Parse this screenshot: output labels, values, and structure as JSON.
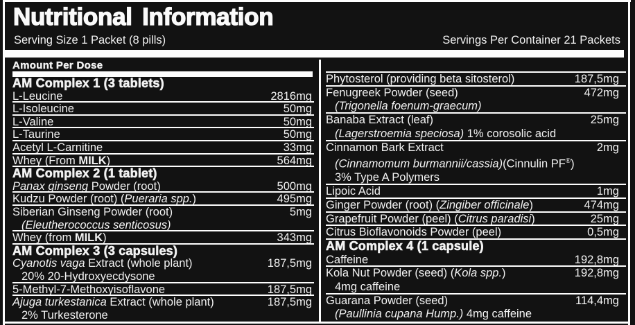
{
  "title": "Nutritional Information",
  "serving_line": {
    "serving_size": "Serving Size 1 Packet (8 pills)",
    "servings_per_container": "Servings Per Container 21 Packets"
  },
  "amount_per_dose_label": "Amount Per Dose",
  "colors": {
    "background": "#121212",
    "text": "#f2f2f2",
    "rules": "#fdfdfd"
  },
  "columns": {
    "left": [
      {
        "type": "header",
        "sep": false,
        "text": "AM Complex 1 (3 tablets)"
      },
      {
        "type": "item",
        "sep": false,
        "parts": [
          {
            "t": "L-Leucine"
          }
        ],
        "amount": "2816mg"
      },
      {
        "type": "item",
        "sep": true,
        "parts": [
          {
            "t": "L-Isoleucine"
          }
        ],
        "amount": "50mg"
      },
      {
        "type": "item",
        "sep": true,
        "parts": [
          {
            "t": "L-Valine"
          }
        ],
        "amount": "50mg"
      },
      {
        "type": "item",
        "sep": true,
        "parts": [
          {
            "t": "L-Taurine"
          }
        ],
        "amount": "50mg"
      },
      {
        "type": "item",
        "sep": true,
        "parts": [
          {
            "t": "Acetyl L-Carnitine"
          }
        ],
        "amount": "33mg"
      },
      {
        "type": "item",
        "sep": true,
        "parts": [
          {
            "t": "Whey (From "
          },
          {
            "t": "MILK",
            "b": true
          },
          {
            "t": ")"
          }
        ],
        "amount": "564mg"
      },
      {
        "type": "header",
        "sep": true,
        "text": "AM Complex 2 (1 tablet)"
      },
      {
        "type": "item",
        "sep": false,
        "parts": [
          {
            "t": "Panax ginseng",
            "i": true
          },
          {
            "t": " Powder (root)"
          }
        ],
        "amount": "500mg"
      },
      {
        "type": "item",
        "sep": true,
        "parts": [
          {
            "t": "Kudzu Powder (root) ("
          },
          {
            "t": "Pueraria spp.",
            "i": true
          },
          {
            "t": ")"
          }
        ],
        "amount": "495mg"
      },
      {
        "type": "item",
        "sep": true,
        "parts": [
          {
            "t": "Siberian Ginseng Powder (root)"
          }
        ],
        "amount": "5mg",
        "subs": [
          [
            {
              "t": "(Eleutherococcus senticosus)",
              "i": true
            }
          ]
        ]
      },
      {
        "type": "item",
        "sep": true,
        "parts": [
          {
            "t": "Whey (from "
          },
          {
            "t": "MILK",
            "b": true
          },
          {
            "t": ")"
          }
        ],
        "amount": "343mg"
      },
      {
        "type": "header",
        "sep": true,
        "text": "AM Complex 3 (3 capsules)"
      },
      {
        "type": "item",
        "sep": false,
        "parts": [
          {
            "t": "Cyanotis vaga",
            "i": true
          },
          {
            "t": " Extract (whole plant)"
          }
        ],
        "amount": "187,5mg",
        "subs": [
          [
            {
              "t": "20% 20-Hydroxyecdysone"
            }
          ]
        ]
      },
      {
        "type": "item",
        "sep": true,
        "parts": [
          {
            "t": "5-Methyl-7-Methoxyisoflavone"
          }
        ],
        "amount": "187,5mg"
      },
      {
        "type": "item",
        "sep": true,
        "parts": [
          {
            "t": "Ajuga turkestanica",
            "i": true
          },
          {
            "t": " Extract (whole plant)"
          }
        ],
        "amount": "187,5mg",
        "subs": [
          [
            {
              "t": "2% Turkesterone"
            }
          ]
        ]
      }
    ],
    "right": [
      {
        "type": "item",
        "sep": true,
        "parts": [
          {
            "t": "Phytosterol (providing beta sitosterol)"
          }
        ],
        "amount": "187,5mg"
      },
      {
        "type": "item",
        "sep": true,
        "parts": [
          {
            "t": "Fenugreek Powder (seed)"
          }
        ],
        "amount": "472mg",
        "subs": [
          [
            {
              "t": "(Trigonella foenum-graecum)",
              "i": true
            }
          ]
        ]
      },
      {
        "type": "item",
        "sep": true,
        "parts": [
          {
            "t": "Banaba Extract (leaf)"
          }
        ],
        "amount": "25mg",
        "subs": [
          [
            {
              "t": "(Lagerstroemia speciosa)",
              "i": true
            },
            {
              "t": " 1% corosolic acid"
            }
          ]
        ]
      },
      {
        "type": "item",
        "sep": true,
        "parts": [
          {
            "t": "Cinnamon Bark Extract"
          }
        ],
        "amount": "2mg",
        "subs": [
          [
            {
              "t": "(Cinnamomum burmannii/cassia)",
              "i": true
            },
            {
              "t": "(Cinnulin PF"
            },
            {
              "t": "®",
              "sup": true
            },
            {
              "t": ")"
            }
          ],
          [
            {
              "t": "3% Type A Polymers"
            }
          ]
        ]
      },
      {
        "type": "item",
        "sep": true,
        "parts": [
          {
            "t": "Lipoic Acid"
          }
        ],
        "amount": "1mg"
      },
      {
        "type": "item",
        "sep": true,
        "parts": [
          {
            "t": "Ginger Powder (root) ("
          },
          {
            "t": "Zingiber officinale",
            "i": true
          },
          {
            "t": ")"
          }
        ],
        "amount": "474mg"
      },
      {
        "type": "item",
        "sep": true,
        "parts": [
          {
            "t": "Grapefruit Powder (peel) ("
          },
          {
            "t": "Citrus paradisi",
            "i": true
          },
          {
            "t": ")"
          }
        ],
        "amount": "25mg"
      },
      {
        "type": "item",
        "sep": true,
        "parts": [
          {
            "t": "Citrus Bioflavonoids Powder (peel)"
          }
        ],
        "amount": "0,5mg"
      },
      {
        "type": "header",
        "sep": true,
        "text": "AM Complex 4 (1 capsule)"
      },
      {
        "type": "item",
        "sep": false,
        "parts": [
          {
            "t": "Caffeine"
          }
        ],
        "amount": "192,8mg"
      },
      {
        "type": "item",
        "sep": true,
        "parts": [
          {
            "t": "Kola Nut Powder (seed) ("
          },
          {
            "t": "Kola spp.",
            "i": true
          },
          {
            "t": ")"
          }
        ],
        "amount": "192,8mg",
        "subs": [
          [
            {
              "t": "4mg caffeine"
            }
          ]
        ]
      },
      {
        "type": "item",
        "sep": true,
        "parts": [
          {
            "t": "Guarana Powder (seed)"
          }
        ],
        "amount": "114,4mg",
        "subs": [
          [
            {
              "t": "(Paullinia cupana Hump.)",
              "i": true
            },
            {
              "t": " 4mg caffeine"
            }
          ]
        ]
      }
    ]
  }
}
